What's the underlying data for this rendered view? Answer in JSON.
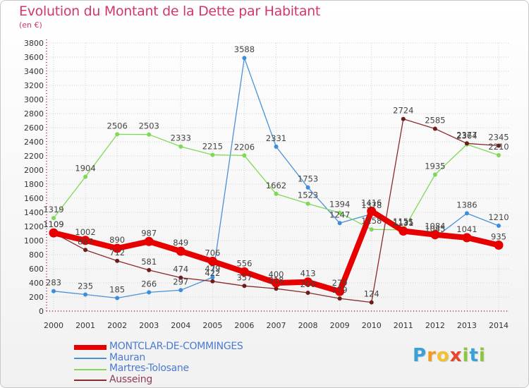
{
  "title": "Evolution du Montant de la Dette par Habitant",
  "subtitle": "(en €)",
  "logo": {
    "letters": [
      "P",
      "r",
      "o",
      "x",
      "i",
      "t",
      "i"
    ],
    "colors": [
      "#3aa0d8",
      "#f29b1f",
      "#f2c12e",
      "#e8452c",
      "#8cc63f",
      "#3aa0d8",
      "#8cc63f"
    ]
  },
  "chart_data": {
    "type": "line",
    "x": [
      2000,
      2001,
      2002,
      2003,
      2004,
      2005,
      2006,
      2007,
      2008,
      2009,
      2010,
      2011,
      2012,
      2013,
      2014
    ],
    "ylim": [
      0,
      3800
    ],
    "yticks": [
      0,
      200,
      400,
      600,
      800,
      1000,
      1200,
      1400,
      1600,
      1800,
      2000,
      2200,
      2400,
      2600,
      2800,
      3000,
      3200,
      3400,
      3600,
      3800
    ],
    "grid": true,
    "legend_position": "bottom-left",
    "series": [
      {
        "name": "MONTCLAR-DE-COMMINGES",
        "color": "#e60000",
        "values": [
          1109,
          1002,
          890,
          987,
          849,
          706,
          556,
          400,
          413,
          279,
          1416,
          1135,
          1084,
          1041,
          935
        ]
      },
      {
        "name": "Mauran",
        "color": "#4a90d9",
        "values": [
          283,
          235,
          185,
          266,
          297,
          479,
          3588,
          2331,
          1753,
          1247,
          1378,
          1131,
          1045,
          1386,
          1210
        ]
      },
      {
        "name": "Martres-Tolosane",
        "color": "#7ed957",
        "values": [
          1319,
          1904,
          2506,
          2503,
          2333,
          2215,
          2206,
          1662,
          1523,
          1394,
          1158,
          1151,
          1935,
          2364,
          2210
        ]
      },
      {
        "name": "Ausseing",
        "color": "#8b2a2a",
        "values": [
          1109,
          867,
          712,
          581,
          474,
          422,
          357,
          318,
          260,
          179,
          124,
          2724,
          2585,
          2377,
          2345
        ]
      }
    ]
  }
}
